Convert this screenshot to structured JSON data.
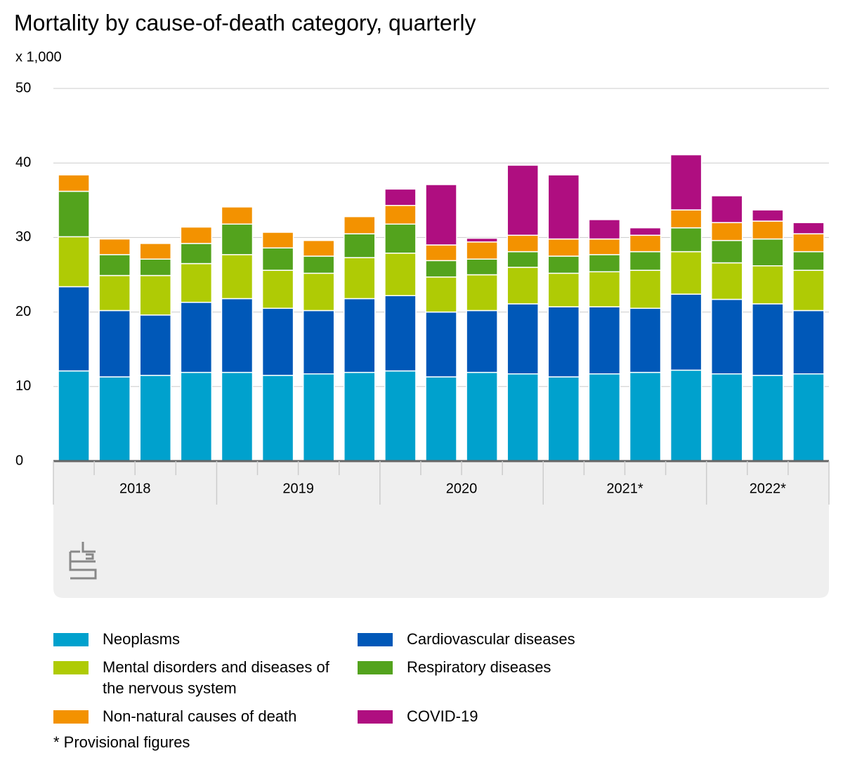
{
  "chart_data": {
    "type": "stacked_bar",
    "title": "Mortality by cause-of-death category, quarterly",
    "y_unit": "x 1,000",
    "footnote": "* Provisional figures",
    "categories": [
      null,
      null,
      null,
      null,
      null,
      null,
      null,
      null,
      null,
      null,
      null,
      null,
      null,
      null,
      null,
      null,
      null,
      null,
      null
    ],
    "year_labels": [
      "2018",
      "2019",
      "2020",
      "2021*",
      "2022*"
    ],
    "ylim": [
      0,
      50
    ],
    "yticks": [
      0,
      10,
      20,
      30,
      40,
      50
    ],
    "grid": true,
    "series": [
      {
        "name": "Neoplasms",
        "color": "#00a1cd",
        "values": [
          12.1,
          11.3,
          11.5,
          11.9,
          11.9,
          11.5,
          11.7,
          11.9,
          12.1,
          11.3,
          11.9,
          11.7,
          11.3,
          11.7,
          11.9,
          12.2,
          11.7,
          11.5,
          11.7
        ]
      },
      {
        "name": "Cardiovascular diseases",
        "color": "#0058b8",
        "values": [
          11.3,
          8.9,
          8.1,
          9.4,
          9.9,
          9.0,
          8.5,
          9.9,
          10.1,
          8.7,
          8.3,
          9.4,
          9.4,
          9.0,
          8.6,
          10.2,
          10.0,
          9.6,
          8.5
        ]
      },
      {
        "name": "Mental disorders and diseases of the nervous system",
        "color": "#afcb05",
        "values": [
          6.7,
          4.7,
          5.3,
          5.2,
          5.9,
          5.1,
          5.0,
          5.5,
          5.7,
          4.7,
          4.8,
          4.9,
          4.5,
          4.7,
          5.1,
          5.7,
          4.9,
          5.1,
          5.4
        ]
      },
      {
        "name": "Respiratory diseases",
        "color": "#53a31d",
        "values": [
          6.1,
          2.8,
          2.2,
          2.7,
          4.1,
          3.0,
          2.3,
          3.2,
          3.9,
          2.2,
          2.1,
          2.1,
          2.3,
          2.3,
          2.5,
          3.2,
          3.0,
          3.6,
          2.5
        ]
      },
      {
        "name": "Non-natural causes of death",
        "color": "#f39200",
        "values": [
          2.2,
          2.1,
          2.1,
          2.2,
          2.3,
          2.1,
          2.1,
          2.3,
          2.5,
          2.1,
          2.3,
          2.2,
          2.3,
          2.1,
          2.2,
          2.4,
          2.4,
          2.4,
          2.4
        ]
      },
      {
        "name": "COVID-19",
        "color": "#af0e80",
        "values": [
          0,
          0,
          0,
          0,
          0,
          0,
          0,
          0,
          2.2,
          8.1,
          0.5,
          9.4,
          8.6,
          2.6,
          1.0,
          7.4,
          3.6,
          1.5,
          1.5
        ]
      }
    ]
  }
}
